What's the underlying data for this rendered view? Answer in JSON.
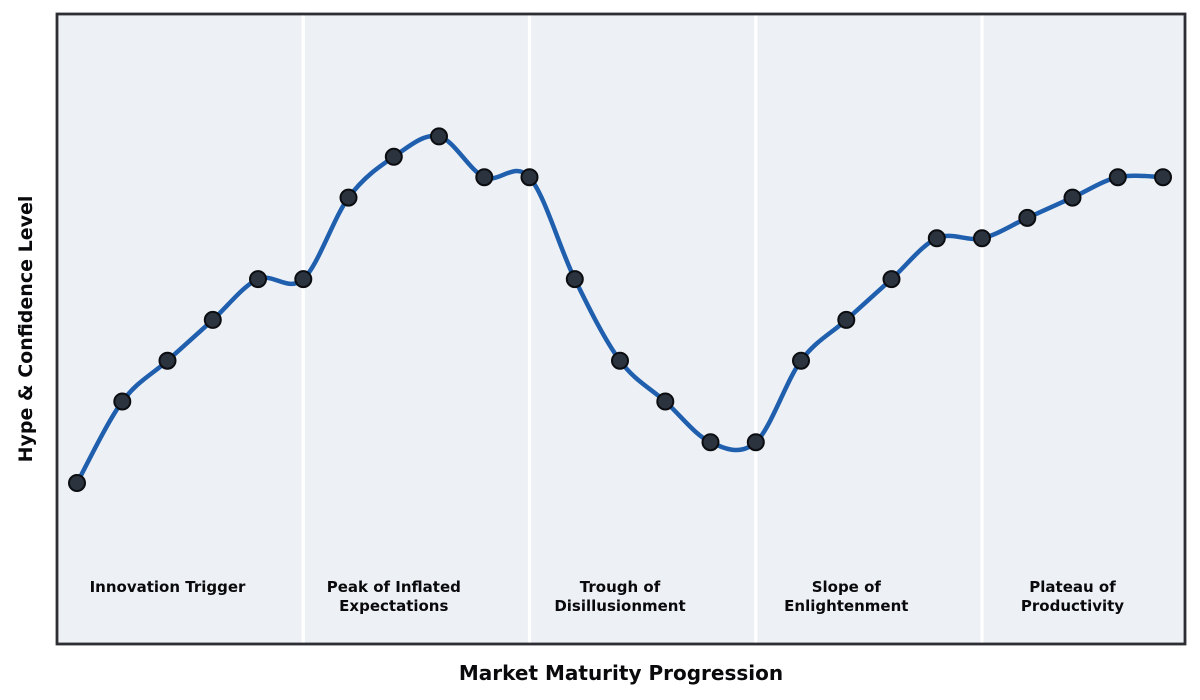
{
  "figure": {
    "background": "#ffffff",
    "plot_background": "#edf1f6",
    "divider_color": "#ffffff",
    "spine_color": "#2c2e33",
    "line_color": "#1f5fad",
    "marker_fill": "#2b333f",
    "marker_edge": "#0b0d10",
    "text_color": "#0a0a0c"
  },
  "chart_data": {
    "type": "line",
    "title": "",
    "xlabel": "Market Maturity Progression",
    "ylabel": "Hype & Confidence Level",
    "x": [
      0,
      1,
      2,
      3,
      4,
      5,
      6,
      7,
      8,
      9,
      10,
      11,
      12,
      13,
      14,
      15,
      16,
      17,
      18,
      19,
      20,
      21,
      22,
      23,
      24
    ],
    "y": [
      10,
      30,
      40,
      50,
      60,
      60,
      80,
      90,
      95,
      85,
      85,
      60,
      40,
      30,
      20,
      20,
      40,
      50,
      60,
      70,
      70,
      75,
      80,
      85,
      85
    ],
    "ylim": [
      0,
      100
    ],
    "grid": false,
    "legend": "none",
    "axis_ticks": "none",
    "smooth_curve": true,
    "markers": true,
    "phase_boundaries_x": [
      5,
      10,
      15,
      20
    ],
    "phases": [
      {
        "lines": [
          "Innovation Trigger"
        ],
        "label_center_x": 2,
        "x_range": [
          0,
          5
        ]
      },
      {
        "lines": [
          "Peak of Inflated",
          "Expectations"
        ],
        "label_center_x": 7,
        "x_range": [
          5,
          10
        ]
      },
      {
        "lines": [
          "Trough of",
          "Disillusionment"
        ],
        "label_center_x": 12,
        "x_range": [
          10,
          15
        ]
      },
      {
        "lines": [
          "Slope of",
          "Enlightenment"
        ],
        "label_center_x": 17,
        "x_range": [
          15,
          20
        ]
      },
      {
        "lines": [
          "Plateau of",
          "Productivity"
        ],
        "label_center_x": 22,
        "x_range": [
          20,
          24
        ]
      }
    ]
  }
}
